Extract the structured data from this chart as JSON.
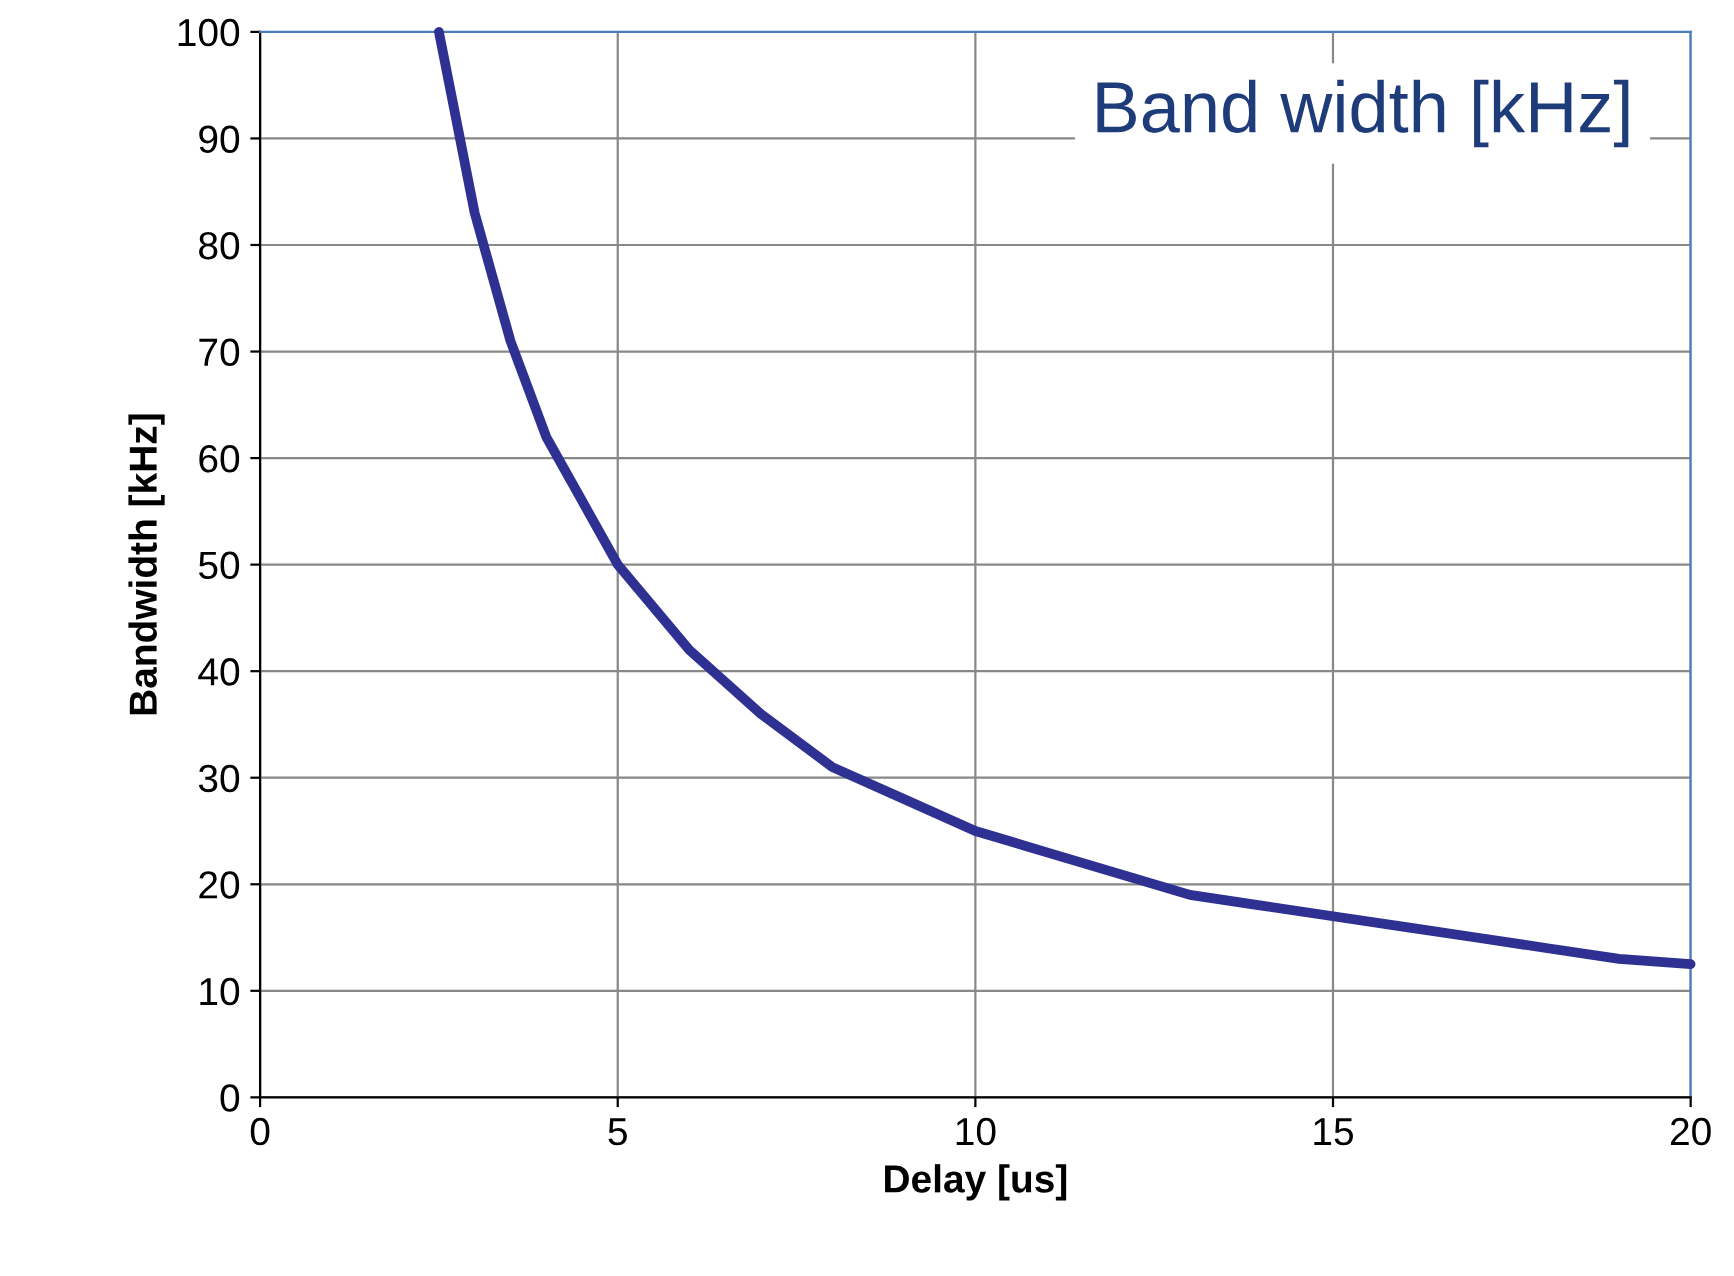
{
  "chart_data": {
    "type": "line",
    "title": "Band width [kHz]",
    "xlabel": "Delay [us]",
    "ylabel": "Bandwidth [kHz]",
    "x": [
      2.5,
      3,
      3.5,
      4,
      4.5,
      5,
      6,
      7,
      8,
      9,
      10,
      11,
      12,
      13,
      14,
      15,
      16,
      17,
      18,
      19,
      20
    ],
    "series": [
      {
        "color": "#2e3192",
        "values": [
          100,
          83,
          71,
          62,
          56,
          50,
          42,
          36,
          31,
          28,
          25,
          23,
          21,
          19,
          18,
          17,
          16,
          15,
          14,
          13,
          12.5
        ]
      }
    ],
    "xlim": [
      0,
      20
    ],
    "xticks": [
      0,
      5,
      10,
      15,
      20
    ],
    "ylim": [
      0,
      100
    ],
    "yticks": [
      0,
      10,
      20,
      30,
      40,
      50,
      60,
      70,
      80,
      90,
      100
    ],
    "grid": true,
    "marker": "none",
    "line_style": "solid"
  }
}
